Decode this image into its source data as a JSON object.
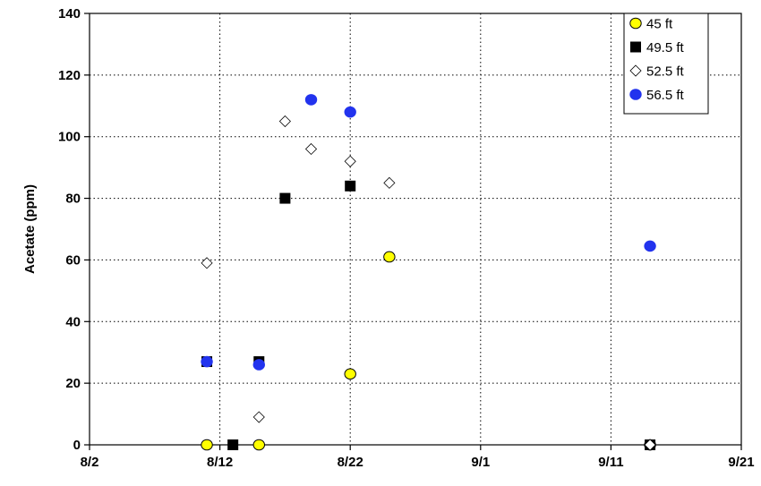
{
  "chart_data": {
    "type": "scatter",
    "title": "",
    "xlabel": "",
    "ylabel": "Acetate (ppm)",
    "x_type": "date",
    "xlim": [
      "8/2",
      "9/21"
    ],
    "ylim": [
      0,
      140
    ],
    "x_ticks": [
      "8/2",
      "8/12",
      "8/22",
      "9/1",
      "9/11",
      "9/21"
    ],
    "y_ticks": [
      0,
      20,
      40,
      60,
      80,
      100,
      120,
      140
    ],
    "grid": true,
    "legend_position": "top-right",
    "series": [
      {
        "name": "45 ft",
        "marker": "circle",
        "fill": "#ffff00",
        "stroke": "#000000",
        "points": [
          {
            "x": "8/11",
            "y": 0
          },
          {
            "x": "8/15",
            "y": 0
          },
          {
            "x": "8/22",
            "y": 23
          },
          {
            "x": "8/25",
            "y": 61
          },
          {
            "x": "9/14",
            "y": 0
          }
        ]
      },
      {
        "name": "49.5 ft",
        "marker": "square",
        "fill": "#000000",
        "stroke": "#000000",
        "points": [
          {
            "x": "8/11",
            "y": 27
          },
          {
            "x": "8/13",
            "y": 0
          },
          {
            "x": "8/15",
            "y": 27
          },
          {
            "x": "8/17",
            "y": 80
          },
          {
            "x": "8/22",
            "y": 84
          },
          {
            "x": "9/14",
            "y": 0
          }
        ]
      },
      {
        "name": "52.5 ft",
        "marker": "diamond",
        "fill": "#ffffff",
        "stroke": "#000000",
        "points": [
          {
            "x": "8/11",
            "y": 59
          },
          {
            "x": "8/15",
            "y": 9
          },
          {
            "x": "8/17",
            "y": 105
          },
          {
            "x": "8/19",
            "y": 96
          },
          {
            "x": "8/22",
            "y": 92
          },
          {
            "x": "8/25",
            "y": 85
          },
          {
            "x": "9/14",
            "y": 0
          }
        ]
      },
      {
        "name": "56.5 ft",
        "marker": "circle",
        "fill": "#2233ee",
        "stroke": "#2233ee",
        "points": [
          {
            "x": "8/11",
            "y": 27
          },
          {
            "x": "8/15",
            "y": 26
          },
          {
            "x": "8/19",
            "y": 112
          },
          {
            "x": "8/22",
            "y": 108
          },
          {
            "x": "9/14",
            "y": 64.5
          }
        ]
      }
    ]
  }
}
